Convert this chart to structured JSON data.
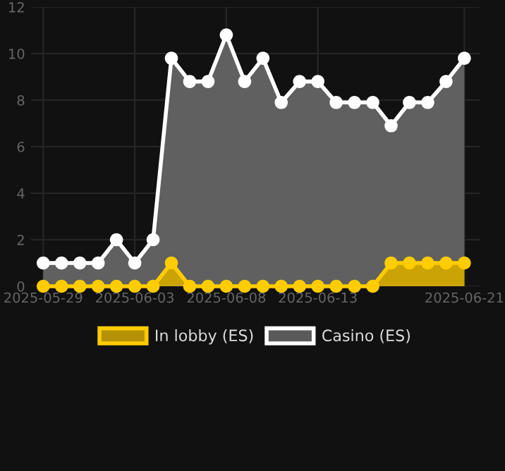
{
  "chart_data": {
    "type": "area",
    "x": [
      "2025-05-29",
      "2025-05-30",
      "2025-05-31",
      "2025-06-01",
      "2025-06-02",
      "2025-06-03",
      "2025-06-04",
      "2025-06-05",
      "2025-06-06",
      "2025-06-07",
      "2025-06-08",
      "2025-06-09",
      "2025-06-10",
      "2025-06-11",
      "2025-06-12",
      "2025-06-13",
      "2025-06-14",
      "2025-06-15",
      "2025-06-16",
      "2025-06-17",
      "2025-06-18",
      "2025-06-19",
      "2025-06-20",
      "2025-06-21"
    ],
    "series": [
      {
        "name": "In lobby (ES)",
        "color": "#ffcc00",
        "values": [
          0,
          0,
          0,
          0,
          0,
          0,
          0,
          1,
          0,
          0,
          0,
          0,
          0,
          0,
          0,
          0,
          0,
          0,
          0,
          1,
          1,
          1,
          1,
          1
        ]
      },
      {
        "name": "Casino (ES)",
        "color": "#ffffff",
        "values": [
          1,
          1,
          1,
          1,
          2,
          1,
          2,
          9.8,
          8.8,
          8.8,
          10.8,
          8.8,
          9.8,
          7.9,
          8.8,
          8.8,
          7.9,
          7.9,
          7.9,
          6.9,
          7.9,
          7.9,
          8.8,
          9.8
        ]
      }
    ],
    "xlim": [
      "2025-05-28T08:00",
      "2025-06-21T20:00"
    ],
    "xticks": [
      {
        "value": "2025-05-29",
        "label": "2025-05-29"
      },
      {
        "value": "2025-06-03",
        "label": "2025-06-03"
      },
      {
        "value": "2025-06-08",
        "label": "2025-06-08"
      },
      {
        "value": "2025-06-13",
        "label": "2025-06-13"
      },
      {
        "value": "2025-06-21",
        "label": "2025-06-21"
      }
    ],
    "ylim": [
      0,
      12
    ],
    "yticks": [
      0,
      2,
      4,
      6,
      8,
      10,
      12
    ],
    "grid": true,
    "legend": "bottom",
    "marker": "circle",
    "line_style": "solid"
  }
}
